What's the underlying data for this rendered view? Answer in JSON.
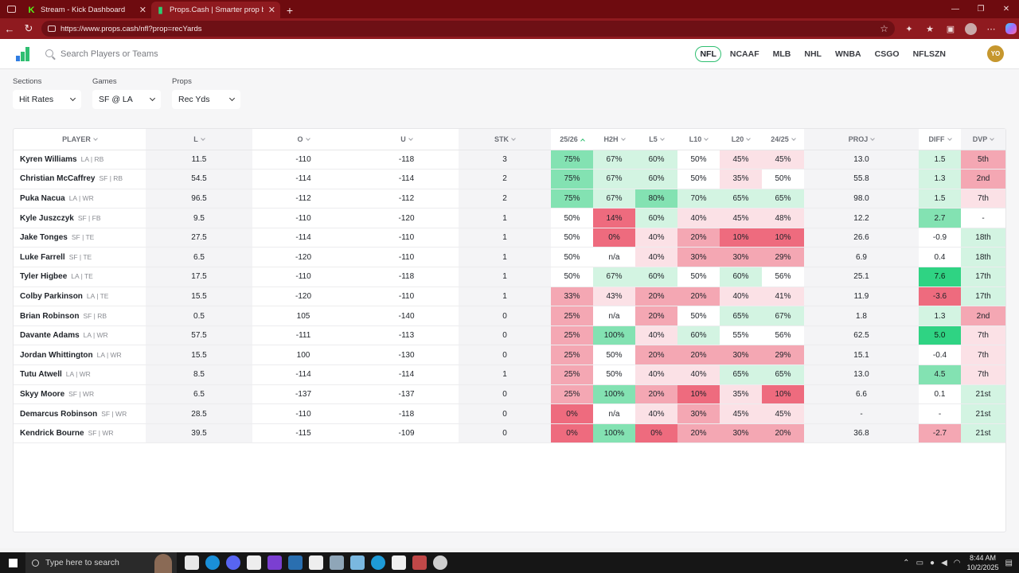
{
  "browser": {
    "tabs": [
      {
        "label": "Stream - Kick Dashboard",
        "active": false,
        "icon": "kick-icon"
      },
      {
        "label": "Props.Cash | Smarter prop bets. N",
        "active": true,
        "icon": "props-cash-icon"
      }
    ],
    "url": "https://www.props.cash/nfl?prop=recYards"
  },
  "nav": {
    "search_placeholder": "Search Players or Teams",
    "leagues": [
      "NFL",
      "NCAAF",
      "MLB",
      "NHL",
      "WNBA",
      "CSGO",
      "NFLSZN"
    ],
    "active_league": "NFL",
    "avatar_initials": "YO"
  },
  "filters": {
    "sections": {
      "label": "Sections",
      "value": "Hit Rates"
    },
    "games": {
      "label": "Games",
      "value": "SF @ LA"
    },
    "props": {
      "label": "Props",
      "value": "Rec Yds"
    }
  },
  "table": {
    "headers": [
      "PLAYER",
      "L",
      "O",
      "U",
      "STK",
      "25/26",
      "H2H",
      "L5",
      "L10",
      "L20",
      "24/25",
      "PROJ",
      "DIFF",
      "DVP"
    ],
    "rows": [
      {
        "name": "Kyren Williams",
        "team": "LA | RB",
        "l": "11.5",
        "o": "-110",
        "u": "-118",
        "stk": "3",
        "s2526": "75%",
        "h2h": "67%",
        "l5": "60%",
        "l10": "50%",
        "l20": "45%",
        "s2425": "45%",
        "proj": "13.0",
        "diff": "1.5",
        "dvp": "5th"
      },
      {
        "name": "Christian McCaffrey",
        "team": "SF | RB",
        "l": "54.5",
        "o": "-114",
        "u": "-114",
        "stk": "2",
        "s2526": "75%",
        "h2h": "67%",
        "l5": "60%",
        "l10": "50%",
        "l20": "35%",
        "s2425": "50%",
        "proj": "55.8",
        "diff": "1.3",
        "dvp": "2nd"
      },
      {
        "name": "Puka Nacua",
        "team": "LA | WR",
        "l": "96.5",
        "o": "-112",
        "u": "-112",
        "stk": "2",
        "s2526": "75%",
        "h2h": "67%",
        "l5": "80%",
        "l10": "70%",
        "l20": "65%",
        "s2425": "65%",
        "proj": "98.0",
        "diff": "1.5",
        "dvp": "7th"
      },
      {
        "name": "Kyle Juszczyk",
        "team": "SF | FB",
        "l": "9.5",
        "o": "-110",
        "u": "-120",
        "stk": "1",
        "s2526": "50%",
        "h2h": "14%",
        "l5": "60%",
        "l10": "40%",
        "l20": "45%",
        "s2425": "48%",
        "proj": "12.2",
        "diff": "2.7",
        "dvp": "-"
      },
      {
        "name": "Jake Tonges",
        "team": "SF | TE",
        "l": "27.5",
        "o": "-114",
        "u": "-110",
        "stk": "1",
        "s2526": "50%",
        "h2h": "0%",
        "l5": "40%",
        "l10": "20%",
        "l20": "10%",
        "s2425": "10%",
        "proj": "26.6",
        "diff": "-0.9",
        "dvp": "18th"
      },
      {
        "name": "Luke Farrell",
        "team": "SF | TE",
        "l": "6.5",
        "o": "-120",
        "u": "-110",
        "stk": "1",
        "s2526": "50%",
        "h2h": "n/a",
        "l5": "40%",
        "l10": "30%",
        "l20": "30%",
        "s2425": "29%",
        "proj": "6.9",
        "diff": "0.4",
        "dvp": "18th"
      },
      {
        "name": "Tyler Higbee",
        "team": "LA | TE",
        "l": "17.5",
        "o": "-110",
        "u": "-118",
        "stk": "1",
        "s2526": "50%",
        "h2h": "67%",
        "l5": "60%",
        "l10": "50%",
        "l20": "60%",
        "s2425": "56%",
        "proj": "25.1",
        "diff": "7.6",
        "dvp": "17th"
      },
      {
        "name": "Colby Parkinson",
        "team": "LA | TE",
        "l": "15.5",
        "o": "-120",
        "u": "-110",
        "stk": "1",
        "s2526": "33%",
        "h2h": "43%",
        "l5": "20%",
        "l10": "20%",
        "l20": "40%",
        "s2425": "41%",
        "proj": "11.9",
        "diff": "-3.6",
        "dvp": "17th"
      },
      {
        "name": "Brian Robinson",
        "team": "SF | RB",
        "l": "0.5",
        "o": "105",
        "u": "-140",
        "stk": "0",
        "s2526": "25%",
        "h2h": "n/a",
        "l5": "20%",
        "l10": "50%",
        "l20": "65%",
        "s2425": "67%",
        "proj": "1.8",
        "diff": "1.3",
        "dvp": "2nd"
      },
      {
        "name": "Davante Adams",
        "team": "LA | WR",
        "l": "57.5",
        "o": "-111",
        "u": "-113",
        "stk": "0",
        "s2526": "25%",
        "h2h": "100%",
        "l5": "40%",
        "l10": "60%",
        "l20": "55%",
        "s2425": "56%",
        "proj": "62.5",
        "diff": "5.0",
        "dvp": "7th"
      },
      {
        "name": "Jordan Whittington",
        "team": "LA | WR",
        "l": "15.5",
        "o": "100",
        "u": "-130",
        "stk": "0",
        "s2526": "25%",
        "h2h": "50%",
        "l5": "20%",
        "l10": "20%",
        "l20": "30%",
        "s2425": "29%",
        "proj": "15.1",
        "diff": "-0.4",
        "dvp": "7th"
      },
      {
        "name": "Tutu Atwell",
        "team": "LA | WR",
        "l": "8.5",
        "o": "-114",
        "u": "-114",
        "stk": "1",
        "s2526": "25%",
        "h2h": "50%",
        "l5": "40%",
        "l10": "40%",
        "l20": "65%",
        "s2425": "65%",
        "proj": "13.0",
        "diff": "4.5",
        "dvp": "7th"
      },
      {
        "name": "Skyy Moore",
        "team": "SF | WR",
        "l": "6.5",
        "o": "-137",
        "u": "-137",
        "stk": "0",
        "s2526": "25%",
        "h2h": "100%",
        "l5": "20%",
        "l10": "10%",
        "l20": "35%",
        "s2425": "10%",
        "proj": "6.6",
        "diff": "0.1",
        "dvp": "21st"
      },
      {
        "name": "Demarcus Robinson",
        "team": "SF | WR",
        "l": "28.5",
        "o": "-110",
        "u": "-118",
        "stk": "0",
        "s2526": "0%",
        "h2h": "n/a",
        "l5": "40%",
        "l10": "30%",
        "l20": "45%",
        "s2425": "45%",
        "proj": "-",
        "diff": "-",
        "dvp": "21st"
      },
      {
        "name": "Kendrick Bourne",
        "team": "SF | WR",
        "l": "39.5",
        "o": "-115",
        "u": "-109",
        "stk": "0",
        "s2526": "0%",
        "h2h": "100%",
        "l5": "0%",
        "l10": "20%",
        "l20": "30%",
        "s2425": "20%",
        "proj": "36.8",
        "diff": "-2.7",
        "dvp": "21st"
      }
    ]
  },
  "taskbar": {
    "search_placeholder": "Type here to search",
    "time": "8:44 AM",
    "date": "10/2/2025"
  },
  "colors": {
    "browser_tabbar": "#6e0b0f",
    "browser_toolbar": "#8f1a1f",
    "accent_green": "#2fbf71",
    "strong_green": "#2fd383",
    "strong_red": "#ee6b7e"
  }
}
